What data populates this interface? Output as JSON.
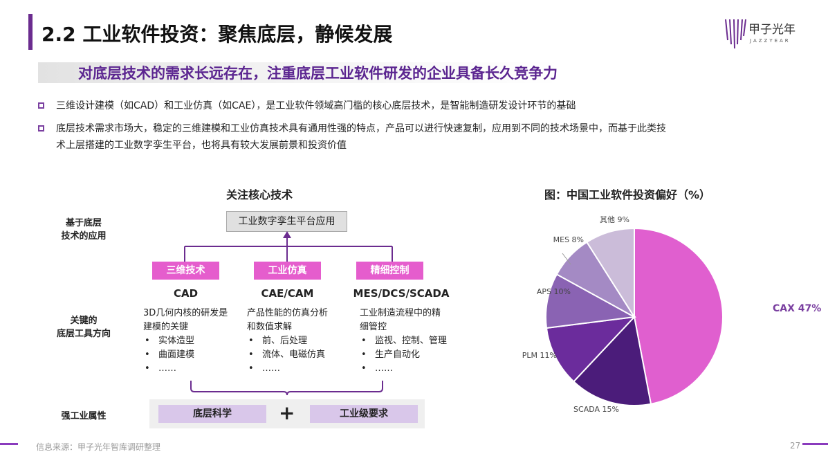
{
  "header": {
    "title": "2.2 工业软件投资：聚焦底层，静候发展",
    "logo_cn": "甲子光年",
    "logo_en": "JAZZYEAR"
  },
  "subtitle": "对底层技术的需求长远存在，注重底层工业软件研发的企业具备长久竞争力",
  "bullets": [
    {
      "lines": [
        "三维设计建模（如CAD）和工业仿真（如CAE），是工业软件领域高门槛的核心底层技术，是智能制造研发设计环节的基础"
      ]
    },
    {
      "lines": [
        "底层技术需求市场大，稳定的三维建模和工业仿真技术具有通用性强的特点，产品可以进行快速复制，应用到不同的技术场景中，而基于此类技",
        "术上层搭建的工业数字孪生平台，也将具有较大发展前景和投资价值"
      ]
    }
  ],
  "diagram": {
    "title": "关注核心技术",
    "row_labels": {
      "app_1": "基于底层",
      "app_2": "技术的应用",
      "tool_1": "关键的",
      "tool_2": "底层工具方向",
      "attr": "强工业属性"
    },
    "top_box": "工业数字孪生平台应用",
    "columns": [
      {
        "tag": "三维技术",
        "head": "CAD",
        "desc": [
          "3D几何内核的研发是",
          "建模的关键"
        ],
        "items": [
          "实体造型",
          "曲面建模",
          "……"
        ]
      },
      {
        "tag": "工业仿真",
        "head": "CAE/CAM",
        "desc": [
          "产品性能的仿真分析",
          "和数值求解"
        ],
        "items": [
          "前、后处理",
          "流体、电磁仿真",
          "……"
        ]
      },
      {
        "tag": "精细控制",
        "head": "MES/DCS/SCADA",
        "desc": [
          "工业制造流程中的精",
          "细管控"
        ],
        "items": [
          "监视、控制、管理",
          "生产自动化",
          "……"
        ]
      }
    ],
    "bottom_left": "底层科学",
    "plus": "+",
    "bottom_right": "工业级要求"
  },
  "chart_data": {
    "type": "pie",
    "title": "图：中国工业软件投资偏好（%）",
    "slices": [
      {
        "label": "CAX 47%",
        "value": 47,
        "color": "#e05fcf"
      },
      {
        "label": "SCADA 15%",
        "value": 15,
        "color": "#4b1c7a"
      },
      {
        "label": "PLM 11%",
        "value": 11,
        "color": "#6b2c9c"
      },
      {
        "label": "APS 10%",
        "value": 10,
        "color": "#8a63b3"
      },
      {
        "label": "MES 8%",
        "value": 8,
        "color": "#a48ac4"
      },
      {
        "label": "其他 9%",
        "value": 9,
        "color": "#cbbcd9"
      }
    ]
  },
  "footer": {
    "source": "信息来源：甲子光年智库调研整理",
    "page": "27"
  },
  "colors": {
    "accent": "#6b2c8f",
    "tag": "#e55dcd",
    "pill": "#d9c7ea"
  }
}
